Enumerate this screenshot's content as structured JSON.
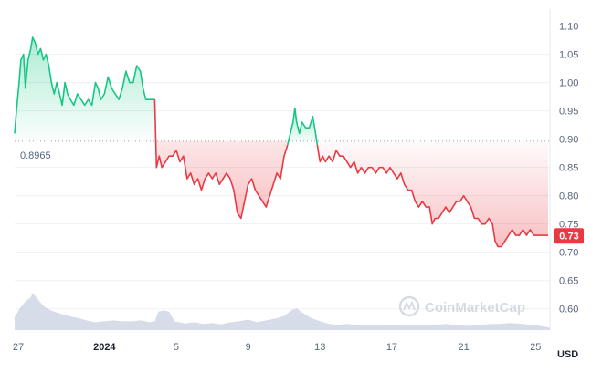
{
  "chart_data": {
    "type": "line",
    "currency": "USD",
    "watermark": "CoinMarketCap",
    "reference": {
      "label": "0.8965",
      "value": 0.8965
    },
    "current": {
      "label": "0.73",
      "value": 0.729
    },
    "y_ticks": [
      "1.10",
      "1.05",
      "1.00",
      "0.95",
      "0.90",
      "0.85",
      "0.80",
      "0.75",
      "0.70",
      "0.65",
      "0.60"
    ],
    "ylim": [
      0.585,
      1.13
    ],
    "x_ticks": [
      {
        "label": "27",
        "index": 0,
        "bold": false
      },
      {
        "label": "2024",
        "index": 5,
        "bold": true
      },
      {
        "label": "5",
        "index": 9,
        "bold": false
      },
      {
        "label": "9",
        "index": 13,
        "bold": false
      },
      {
        "label": "13",
        "index": 17,
        "bold": false
      },
      {
        "label": "17",
        "index": 21,
        "bold": false
      },
      {
        "label": "21",
        "index": 25,
        "bold": false
      },
      {
        "label": "25",
        "index": 29,
        "bold": false
      }
    ],
    "x_range": [
      0,
      29.8
    ],
    "series": [
      {
        "values": [
          [
            0,
            0.91
          ],
          [
            0.1,
            0.95
          ],
          [
            0.25,
            1.0
          ],
          [
            0.35,
            1.04
          ],
          [
            0.5,
            1.05
          ],
          [
            0.6,
            0.99
          ],
          [
            0.75,
            1.04
          ],
          [
            0.9,
            1.06
          ],
          [
            1.0,
            1.08
          ],
          [
            1.15,
            1.07
          ],
          [
            1.3,
            1.05
          ],
          [
            1.45,
            1.06
          ],
          [
            1.6,
            1.04
          ],
          [
            1.75,
            1.05
          ],
          [
            1.9,
            1.03
          ],
          [
            2.05,
            1.0
          ],
          [
            2.2,
            0.98
          ],
          [
            2.35,
            1.0
          ],
          [
            2.5,
            0.98
          ],
          [
            2.65,
            0.96
          ],
          [
            2.8,
            1.0
          ],
          [
            2.95,
            0.98
          ],
          [
            3.1,
            0.97
          ],
          [
            3.3,
            0.96
          ],
          [
            3.5,
            0.98
          ],
          [
            3.7,
            0.97
          ],
          [
            3.9,
            0.96
          ],
          [
            4.1,
            0.97
          ],
          [
            4.3,
            0.96
          ],
          [
            4.5,
            1.0
          ],
          [
            4.65,
            0.99
          ],
          [
            4.8,
            0.97
          ],
          [
            5.0,
            0.98
          ],
          [
            5.2,
            1.01
          ],
          [
            5.4,
            0.99
          ],
          [
            5.6,
            0.98
          ],
          [
            5.8,
            0.97
          ],
          [
            6.0,
            0.99
          ],
          [
            6.2,
            1.02
          ],
          [
            6.4,
            1.0
          ],
          [
            6.6,
            1.0
          ],
          [
            6.8,
            1.03
          ],
          [
            7.0,
            1.02
          ],
          [
            7.15,
            0.99
          ],
          [
            7.3,
            0.97
          ],
          [
            7.5,
            0.97
          ],
          [
            7.7,
            0.97
          ],
          [
            7.8,
            0.97
          ]
        ]
      },
      {
        "values": [
          [
            7.8,
            0.97
          ],
          [
            7.9,
            0.85
          ],
          [
            8.05,
            0.87
          ],
          [
            8.2,
            0.85
          ],
          [
            8.4,
            0.86
          ],
          [
            8.6,
            0.87
          ],
          [
            8.8,
            0.87
          ],
          [
            9.0,
            0.88
          ],
          [
            9.2,
            0.86
          ],
          [
            9.4,
            0.87
          ],
          [
            9.6,
            0.83
          ],
          [
            9.8,
            0.84
          ],
          [
            10.0,
            0.82
          ],
          [
            10.2,
            0.83
          ],
          [
            10.4,
            0.81
          ],
          [
            10.6,
            0.83
          ],
          [
            10.8,
            0.84
          ],
          [
            11.0,
            0.83
          ],
          [
            11.2,
            0.84
          ],
          [
            11.4,
            0.82
          ],
          [
            11.6,
            0.83
          ],
          [
            11.8,
            0.84
          ],
          [
            12.0,
            0.83
          ],
          [
            12.2,
            0.81
          ],
          [
            12.4,
            0.77
          ],
          [
            12.6,
            0.76
          ],
          [
            12.8,
            0.79
          ],
          [
            13.0,
            0.82
          ],
          [
            13.2,
            0.83
          ],
          [
            13.4,
            0.81
          ],
          [
            13.6,
            0.8
          ],
          [
            13.8,
            0.79
          ],
          [
            14.0,
            0.78
          ],
          [
            14.2,
            0.8
          ],
          [
            14.4,
            0.82
          ],
          [
            14.6,
            0.84
          ],
          [
            14.8,
            0.83
          ],
          [
            15.0,
            0.87
          ],
          [
            15.2,
            0.89
          ]
        ]
      },
      {
        "values": [
          [
            15.2,
            0.89
          ],
          [
            15.35,
            0.91
          ],
          [
            15.5,
            0.93
          ],
          [
            15.6,
            0.955
          ],
          [
            15.7,
            0.93
          ],
          [
            15.85,
            0.91
          ],
          [
            16.0,
            0.93
          ],
          [
            16.2,
            0.92
          ],
          [
            16.4,
            0.92
          ],
          [
            16.6,
            0.94
          ],
          [
            16.75,
            0.91
          ],
          [
            16.85,
            0.89
          ]
        ]
      },
      {
        "values": [
          [
            16.85,
            0.89
          ],
          [
            17.0,
            0.86
          ],
          [
            17.15,
            0.87
          ],
          [
            17.3,
            0.86
          ],
          [
            17.5,
            0.87
          ],
          [
            17.7,
            0.86
          ],
          [
            17.9,
            0.88
          ],
          [
            18.1,
            0.87
          ],
          [
            18.3,
            0.87
          ],
          [
            18.5,
            0.86
          ],
          [
            18.7,
            0.85
          ],
          [
            18.9,
            0.86
          ],
          [
            19.1,
            0.84
          ],
          [
            19.3,
            0.85
          ],
          [
            19.5,
            0.84
          ],
          [
            19.7,
            0.85
          ],
          [
            19.9,
            0.85
          ],
          [
            20.1,
            0.84
          ],
          [
            20.3,
            0.85
          ],
          [
            20.5,
            0.85
          ],
          [
            20.7,
            0.84
          ],
          [
            20.9,
            0.85
          ],
          [
            21.1,
            0.84
          ],
          [
            21.3,
            0.83
          ],
          [
            21.5,
            0.84
          ],
          [
            21.7,
            0.82
          ],
          [
            21.9,
            0.81
          ],
          [
            22.1,
            0.81
          ],
          [
            22.3,
            0.79
          ],
          [
            22.5,
            0.78
          ],
          [
            22.7,
            0.79
          ],
          [
            22.9,
            0.78
          ],
          [
            23.1,
            0.78
          ],
          [
            23.25,
            0.75
          ],
          [
            23.4,
            0.76
          ],
          [
            23.6,
            0.76
          ],
          [
            23.8,
            0.77
          ],
          [
            24.0,
            0.78
          ],
          [
            24.2,
            0.77
          ],
          [
            24.4,
            0.78
          ],
          [
            24.6,
            0.79
          ],
          [
            24.8,
            0.79
          ],
          [
            25.0,
            0.8
          ],
          [
            25.2,
            0.79
          ],
          [
            25.4,
            0.78
          ],
          [
            25.6,
            0.76
          ],
          [
            25.8,
            0.76
          ],
          [
            26.0,
            0.75
          ],
          [
            26.2,
            0.75
          ],
          [
            26.4,
            0.76
          ],
          [
            26.6,
            0.75
          ],
          [
            26.75,
            0.72
          ],
          [
            26.9,
            0.71
          ],
          [
            27.1,
            0.71
          ],
          [
            27.3,
            0.72
          ],
          [
            27.5,
            0.73
          ],
          [
            27.7,
            0.74
          ],
          [
            27.9,
            0.73
          ],
          [
            28.1,
            0.73
          ],
          [
            28.3,
            0.74
          ],
          [
            28.5,
            0.73
          ],
          [
            28.7,
            0.74
          ],
          [
            28.9,
            0.73
          ],
          [
            29.1,
            0.73
          ],
          [
            29.3,
            0.73
          ],
          [
            29.5,
            0.73
          ],
          [
            29.7,
            0.73
          ]
        ]
      }
    ],
    "volume": [
      [
        0,
        0.3
      ],
      [
        0.3,
        0.5
      ],
      [
        0.6,
        0.65
      ],
      [
        0.9,
        0.75
      ],
      [
        1.0,
        0.85
      ],
      [
        1.3,
        0.7
      ],
      [
        1.6,
        0.55
      ],
      [
        2.0,
        0.45
      ],
      [
        2.5,
        0.38
      ],
      [
        3.0,
        0.32
      ],
      [
        3.5,
        0.28
      ],
      [
        4.0,
        0.22
      ],
      [
        4.5,
        0.18
      ],
      [
        5.0,
        0.2
      ],
      [
        5.5,
        0.22
      ],
      [
        6.0,
        0.2
      ],
      [
        6.5,
        0.2
      ],
      [
        7.0,
        0.22
      ],
      [
        7.5,
        0.18
      ],
      [
        7.8,
        0.2
      ],
      [
        8.0,
        0.42
      ],
      [
        8.3,
        0.45
      ],
      [
        8.6,
        0.42
      ],
      [
        8.9,
        0.2
      ],
      [
        9.5,
        0.15
      ],
      [
        10.0,
        0.18
      ],
      [
        10.5,
        0.14
      ],
      [
        11.0,
        0.16
      ],
      [
        11.5,
        0.13
      ],
      [
        12.0,
        0.18
      ],
      [
        12.5,
        0.2
      ],
      [
        13.0,
        0.24
      ],
      [
        13.5,
        0.18
      ],
      [
        14.0,
        0.22
      ],
      [
        14.5,
        0.26
      ],
      [
        15.0,
        0.32
      ],
      [
        15.4,
        0.45
      ],
      [
        15.7,
        0.5
      ],
      [
        16.0,
        0.4
      ],
      [
        16.5,
        0.28
      ],
      [
        17.0,
        0.2
      ],
      [
        17.5,
        0.14
      ],
      [
        18.0,
        0.12
      ],
      [
        18.5,
        0.14
      ],
      [
        19.0,
        0.12
      ],
      [
        19.5,
        0.11
      ],
      [
        20.0,
        0.12
      ],
      [
        20.5,
        0.11
      ],
      [
        21.0,
        0.1
      ],
      [
        21.5,
        0.12
      ],
      [
        22.0,
        0.11
      ],
      [
        22.5,
        0.12
      ],
      [
        23.0,
        0.11
      ],
      [
        23.5,
        0.12
      ],
      [
        24.0,
        0.14
      ],
      [
        24.5,
        0.12
      ],
      [
        25.0,
        0.1
      ],
      [
        25.5,
        0.1
      ],
      [
        26.0,
        0.12
      ],
      [
        26.5,
        0.14
      ],
      [
        27.0,
        0.14
      ],
      [
        27.5,
        0.16
      ],
      [
        28.0,
        0.15
      ],
      [
        28.5,
        0.13
      ],
      [
        29.0,
        0.11
      ],
      [
        29.5,
        0.08
      ],
      [
        29.8,
        0.05
      ]
    ],
    "colors": {
      "up": "#16c784",
      "down": "#ea3943",
      "volume": "#cfd6e4",
      "grid": "#eef0f4",
      "axis": "#58667e"
    }
  }
}
